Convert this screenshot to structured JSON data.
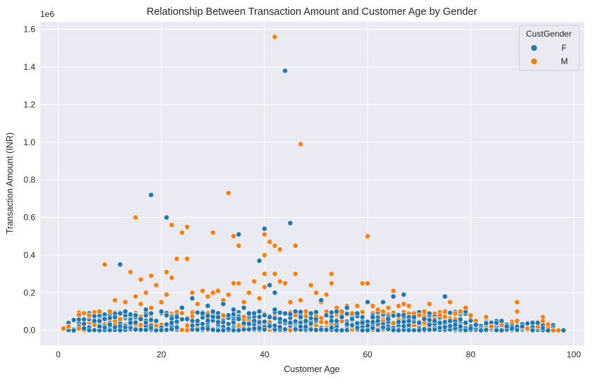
{
  "chart_data": {
    "type": "scatter",
    "title": "Relationship Between Transaction Amount and Customer Age by Gender",
    "xlabel": "Customer Age",
    "ylabel": "Transaction Amount (INR)",
    "y_offset_label": "1e6",
    "xlim": [
      -3.5,
      102
    ],
    "ylim": [
      -0.08,
      1.64
    ],
    "xticks": [
      0,
      20,
      40,
      60,
      80,
      100
    ],
    "xtick_labels": [
      "0",
      "20",
      "40",
      "60",
      "80",
      "100"
    ],
    "yticks": [
      0.0,
      0.2,
      0.4,
      0.6,
      0.8,
      1.0,
      1.2,
      1.4,
      1.6
    ],
    "ytick_labels": [
      "0.0",
      "0.2",
      "0.4",
      "0.6",
      "0.8",
      "1.0",
      "1.2",
      "1.4",
      "1.6"
    ],
    "grid": true,
    "legend": {
      "title": "CustGender",
      "placement": "top-right"
    },
    "series": [
      {
        "name": "F",
        "color": "#1f77b4",
        "points": [
          [
            3,
            0.0
          ],
          [
            5,
            0.01
          ],
          [
            7,
            0.05
          ],
          [
            8,
            0.02
          ],
          [
            9,
            0.06
          ],
          [
            10,
            0.03
          ],
          [
            11,
            0.07
          ],
          [
            12,
            0.09
          ],
          [
            12,
            0.35
          ],
          [
            13,
            0.1
          ],
          [
            14,
            0.04
          ],
          [
            15,
            0.08
          ],
          [
            16,
            0.06
          ],
          [
            17,
            0.11
          ],
          [
            18,
            0.72
          ],
          [
            18,
            0.09
          ],
          [
            19,
            0.05
          ],
          [
            20,
            0.1
          ],
          [
            21,
            0.6
          ],
          [
            21,
            0.08
          ],
          [
            22,
            0.04
          ],
          [
            23,
            0.07
          ],
          [
            24,
            0.12
          ],
          [
            25,
            0.06
          ],
          [
            26,
            0.17
          ],
          [
            27,
            0.05
          ],
          [
            28,
            0.09
          ],
          [
            29,
            0.13
          ],
          [
            30,
            0.1
          ],
          [
            31,
            0.07
          ],
          [
            32,
            0.14
          ],
          [
            33,
            0.08
          ],
          [
            34,
            0.11
          ],
          [
            35,
            0.51
          ],
          [
            35,
            0.06
          ],
          [
            36,
            0.12
          ],
          [
            37,
            0.09
          ],
          [
            38,
            0.05
          ],
          [
            39,
            0.37
          ],
          [
            39,
            0.1
          ],
          [
            40,
            0.54
          ],
          [
            40,
            0.08
          ],
          [
            41,
            0.24
          ],
          [
            41,
            0.07
          ],
          [
            42,
            0.2
          ],
          [
            42,
            0.11
          ],
          [
            43,
            0.06
          ],
          [
            44,
            1.38
          ],
          [
            44,
            0.09
          ],
          [
            45,
            0.57
          ],
          [
            45,
            0.04
          ],
          [
            46,
            0.1
          ],
          [
            47,
            0.07
          ],
          [
            48,
            0.05
          ],
          [
            49,
            0.09
          ],
          [
            50,
            0.06
          ],
          [
            51,
            0.16
          ],
          [
            52,
            0.08
          ],
          [
            53,
            0.05
          ],
          [
            54,
            0.1
          ],
          [
            55,
            0.07
          ],
          [
            56,
            0.12
          ],
          [
            57,
            0.06
          ],
          [
            58,
            0.09
          ],
          [
            59,
            0.04
          ],
          [
            60,
            0.15
          ],
          [
            61,
            0.07
          ],
          [
            62,
            0.05
          ],
          [
            63,
            0.15
          ],
          [
            64,
            0.06
          ],
          [
            65,
            0.18
          ],
          [
            66,
            0.08
          ],
          [
            67,
            0.19
          ],
          [
            68,
            0.05
          ],
          [
            69,
            0.07
          ],
          [
            70,
            0.04
          ],
          [
            71,
            0.06
          ],
          [
            72,
            0.03
          ],
          [
            73,
            0.05
          ],
          [
            74,
            0.04
          ],
          [
            75,
            0.18
          ],
          [
            76,
            0.05
          ],
          [
            77,
            0.03
          ],
          [
            78,
            0.02
          ],
          [
            79,
            0.04
          ],
          [
            80,
            0.01
          ],
          [
            81,
            0.03
          ],
          [
            82,
            0.0
          ],
          [
            85,
            0.04
          ],
          [
            86,
            0.05
          ],
          [
            87,
            0.02
          ],
          [
            88,
            0.01
          ],
          [
            90,
            0.02
          ],
          [
            93,
            0.04
          ],
          [
            95,
            0.0
          ],
          [
            98,
            0.0
          ]
        ]
      },
      {
        "name": "M",
        "color": "#ff7f0e",
        "points": [
          [
            1,
            0.01
          ],
          [
            2,
            0.02
          ],
          [
            4,
            0.01
          ],
          [
            6,
            0.08
          ],
          [
            7,
            0.03
          ],
          [
            8,
            0.1
          ],
          [
            9,
            0.35
          ],
          [
            10,
            0.1
          ],
          [
            11,
            0.16
          ],
          [
            12,
            0.06
          ],
          [
            13,
            0.15
          ],
          [
            14,
            0.31
          ],
          [
            15,
            0.6
          ],
          [
            15,
            0.18
          ],
          [
            16,
            0.27
          ],
          [
            16,
            0.14
          ],
          [
            17,
            0.2
          ],
          [
            18,
            0.29
          ],
          [
            18,
            0.12
          ],
          [
            19,
            0.24
          ],
          [
            20,
            0.15
          ],
          [
            21,
            0.31
          ],
          [
            21,
            0.19
          ],
          [
            22,
            0.56
          ],
          [
            22,
            0.28
          ],
          [
            23,
            0.38
          ],
          [
            24,
            0.52
          ],
          [
            25,
            0.55
          ],
          [
            25,
            0.38
          ],
          [
            26,
            0.2
          ],
          [
            27,
            0.14
          ],
          [
            28,
            0.21
          ],
          [
            29,
            0.18
          ],
          [
            30,
            0.52
          ],
          [
            30,
            0.2
          ],
          [
            31,
            0.21
          ],
          [
            32,
            0.16
          ],
          [
            33,
            0.73
          ],
          [
            33,
            0.19
          ],
          [
            34,
            0.5
          ],
          [
            34,
            0.25
          ],
          [
            35,
            0.45
          ],
          [
            35,
            0.25
          ],
          [
            36,
            0.15
          ],
          [
            37,
            0.2
          ],
          [
            38,
            0.26
          ],
          [
            39,
            0.17
          ],
          [
            40,
            0.51
          ],
          [
            40,
            0.4
          ],
          [
            40,
            0.3
          ],
          [
            40,
            0.23
          ],
          [
            41,
            0.47
          ],
          [
            42,
            1.56
          ],
          [
            42,
            0.45
          ],
          [
            42,
            0.3
          ],
          [
            43,
            0.43
          ],
          [
            43,
            0.26
          ],
          [
            44,
            0.25
          ],
          [
            45,
            0.15
          ],
          [
            46,
            0.45
          ],
          [
            46,
            0.3
          ],
          [
            47,
            0.99
          ],
          [
            47,
            0.16
          ],
          [
            48,
            0.1
          ],
          [
            49,
            0.24
          ],
          [
            50,
            0.2
          ],
          [
            51,
            0.15
          ],
          [
            52,
            0.19
          ],
          [
            53,
            0.3
          ],
          [
            53,
            0.25
          ],
          [
            54,
            0.12
          ],
          [
            55,
            0.1
          ],
          [
            56,
            0.13
          ],
          [
            57,
            0.09
          ],
          [
            58,
            0.13
          ],
          [
            59,
            0.25
          ],
          [
            60,
            0.5
          ],
          [
            60,
            0.25
          ],
          [
            61,
            0.13
          ],
          [
            62,
            0.11
          ],
          [
            63,
            0.1
          ],
          [
            64,
            0.12
          ],
          [
            65,
            0.21
          ],
          [
            66,
            0.13
          ],
          [
            67,
            0.14
          ],
          [
            68,
            0.13
          ],
          [
            69,
            0.09
          ],
          [
            70,
            0.08
          ],
          [
            71,
            0.1
          ],
          [
            72,
            0.14
          ],
          [
            73,
            0.06
          ],
          [
            74,
            0.08
          ],
          [
            75,
            0.1
          ],
          [
            76,
            0.15
          ],
          [
            77,
            0.09
          ],
          [
            78,
            0.1
          ],
          [
            79,
            0.12
          ],
          [
            80,
            0.08
          ],
          [
            81,
            0.05
          ],
          [
            83,
            0.07
          ],
          [
            84,
            0.02
          ],
          [
            86,
            0.03
          ],
          [
            89,
            0.15
          ],
          [
            89,
            0.1
          ],
          [
            89,
            0.05
          ],
          [
            91,
            0.01
          ],
          [
            93,
            0.02
          ],
          [
            94,
            0.07
          ],
          [
            94,
            0.05
          ],
          [
            96,
            0.0
          ],
          [
            97,
            0.0
          ]
        ]
      }
    ],
    "dense_band": {
      "x_range": [
        2,
        96
      ],
      "y_range": [
        0.0,
        0.1
      ]
    }
  }
}
